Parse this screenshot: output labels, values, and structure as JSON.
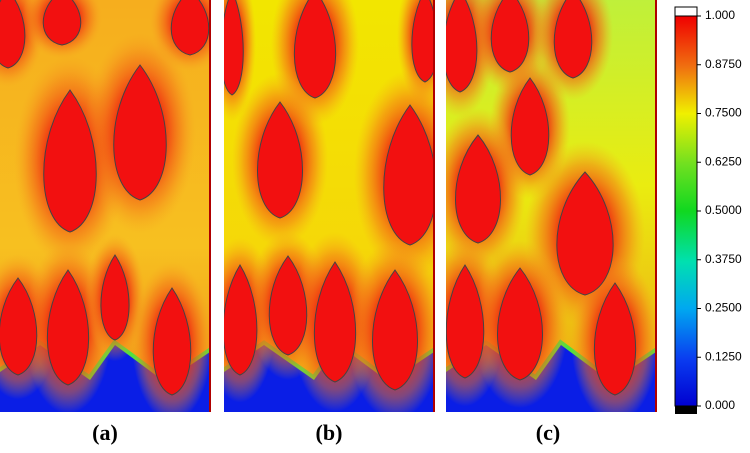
{
  "panels": [
    {
      "label": "(a)"
    },
    {
      "label": "(b)"
    },
    {
      "label": "(c)"
    }
  ],
  "colorbar": {
    "ylim": [
      0,
      1
    ],
    "ticks": [
      {
        "value": 0,
        "label": "0.000"
      },
      {
        "value": 0.125,
        "label": "0.1250"
      },
      {
        "value": 0.25,
        "label": "0.2500"
      },
      {
        "value": 0.375,
        "label": "0.3750"
      },
      {
        "value": 0.5,
        "label": "0.5000"
      },
      {
        "value": 0.625,
        "label": "0.6250"
      },
      {
        "value": 0.75,
        "label": "0.7500"
      },
      {
        "value": 0.875,
        "label": "0.8750"
      },
      {
        "value": 1,
        "label": "1.000"
      }
    ]
  }
}
